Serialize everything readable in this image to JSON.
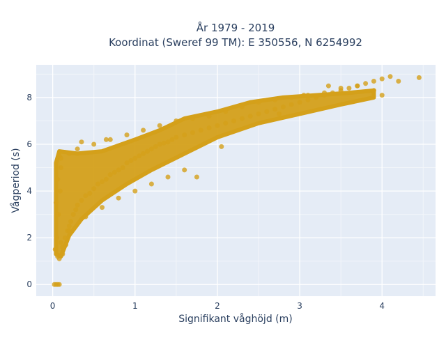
{
  "chart_data": {
    "type": "scatter",
    "title": [
      "År 1979 - 2019",
      "Koordinat (Sweref 99 TM): E 350556, N 6254992"
    ],
    "xlabel": "Signifikant våghöjd (m)",
    "ylabel": "Vågperiod (s)",
    "xlim": [
      -0.2,
      4.65
    ],
    "ylim": [
      -0.5,
      9.4
    ],
    "xticks": [
      0,
      1,
      2,
      3,
      4
    ],
    "yticks": [
      0,
      2,
      4,
      6,
      8
    ],
    "grid": true,
    "legend": "none",
    "colors": {
      "marker": "#d4a01a",
      "plot_bg": "#e5ecf6",
      "grid": "#ffffff",
      "text": "#2a3f5f"
    },
    "series": [
      {
        "x": [
          0.03,
          0.05,
          0.07,
          0.09,
          0.1,
          0.06,
          0.08,
          0.12,
          0.15,
          0.18,
          0.2,
          0.22,
          0.25,
          0.28,
          0.3,
          0.35,
          0.4,
          0.45,
          0.5,
          0.55,
          0.6,
          0.65,
          0.7,
          0.75,
          0.8,
          0.85,
          0.9,
          0.95,
          1.0,
          1.05,
          1.1,
          1.15,
          1.2,
          1.25,
          1.3,
          1.35,
          1.4,
          1.45,
          1.5,
          1.6,
          1.7,
          1.8,
          1.9,
          2.0,
          2.1,
          2.2,
          2.3,
          2.4,
          2.5,
          2.6,
          2.7,
          2.8,
          2.9,
          3.0,
          3.1,
          3.2,
          3.3,
          3.4,
          3.5,
          3.6,
          3.7,
          3.8,
          3.9,
          4.0,
          4.1,
          4.2,
          4.45,
          0.1,
          0.2,
          0.3,
          0.5,
          0.7,
          0.9,
          1.1,
          1.3,
          1.5,
          1.7,
          1.9,
          2.1,
          2.3,
          2.5,
          2.7,
          2.9,
          3.1,
          3.3,
          3.5,
          3.7,
          3.9,
          0.1,
          0.2,
          0.4,
          0.6,
          0.8,
          1.0,
          1.2,
          1.4,
          1.6,
          0.04,
          0.06,
          0.08,
          0.35,
          0.65,
          1.75,
          2.05,
          2.75,
          3.05,
          3.35,
          4.0,
          0.12,
          0.16,
          0.02,
          0.04,
          0.06,
          0.08
        ],
        "y": [
          1.5,
          2.0,
          3.0,
          4.0,
          5.0,
          1.2,
          1.1,
          1.6,
          2.0,
          2.3,
          2.5,
          2.7,
          3.0,
          3.2,
          3.4,
          3.6,
          3.8,
          3.9,
          4.1,
          4.3,
          4.4,
          4.5,
          4.7,
          4.8,
          4.9,
          5.0,
          5.2,
          5.3,
          5.4,
          5.5,
          5.6,
          5.7,
          5.8,
          5.9,
          6.0,
          6.05,
          6.1,
          6.2,
          6.3,
          6.4,
          6.5,
          6.6,
          6.7,
          6.8,
          6.9,
          7.0,
          7.1,
          7.2,
          7.3,
          7.4,
          7.5,
          7.6,
          7.7,
          7.8,
          7.9,
          8.0,
          8.1,
          8.2,
          8.3,
          8.4,
          8.5,
          8.6,
          8.7,
          8.8,
          8.9,
          8.7,
          8.85,
          5.4,
          5.6,
          5.8,
          6.0,
          6.2,
          6.4,
          6.6,
          6.8,
          7.0,
          7.1,
          7.2,
          7.4,
          7.6,
          7.8,
          7.9,
          8.0,
          8.1,
          8.2,
          8.4,
          8.5,
          8.3,
          1.8,
          2.3,
          2.9,
          3.3,
          3.7,
          4.0,
          4.3,
          4.6,
          4.9,
          3.5,
          4.5,
          5.5,
          6.1,
          6.2,
          4.6,
          5.9,
          7.3,
          8.1,
          8.5,
          8.1,
          1.3,
          1.7,
          0.0,
          0.0,
          0.0,
          0.0
        ]
      }
    ]
  }
}
